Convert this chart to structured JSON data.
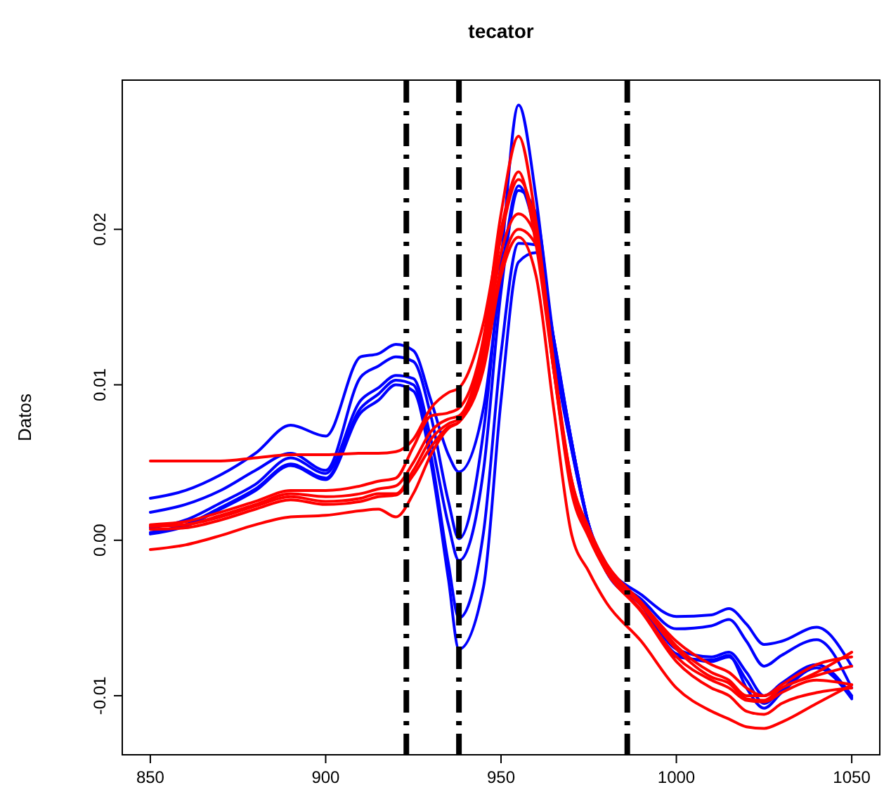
{
  "chart_data": {
    "type": "line",
    "title": "tecator",
    "ylabel": "Datos",
    "x": [
      850,
      860,
      870,
      880,
      890,
      900,
      910,
      915,
      920,
      925,
      930,
      935,
      938,
      945,
      950,
      955,
      960,
      965,
      970,
      975,
      980,
      990,
      1000,
      1010,
      1015,
      1020,
      1025,
      1030,
      1040,
      1050
    ],
    "series": [
      {
        "color": "#0000ff",
        "values": [
          0.0027,
          0.0032,
          0.0042,
          0.0056,
          0.0074,
          0.0067,
          0.0118,
          0.012,
          0.0126,
          0.0122,
          0.009,
          0.0055,
          0.0044,
          0.0085,
          0.017,
          0.0228,
          0.0195,
          0.012,
          0.006,
          0.001,
          -0.0015,
          -0.0035,
          -0.0049,
          -0.0048,
          -0.0044,
          -0.0054,
          -0.0067,
          -0.0065,
          -0.0056,
          -0.0081
        ]
      },
      {
        "color": "#0000ff",
        "values": [
          0.0018,
          0.0023,
          0.0032,
          0.0045,
          0.0056,
          0.0045,
          0.0105,
          0.0112,
          0.0118,
          0.0115,
          0.008,
          0.0025,
          0.0001,
          0.007,
          0.018,
          0.028,
          0.022,
          0.0125,
          0.006,
          0.001,
          -0.0018,
          -0.0038,
          -0.0057,
          -0.0055,
          -0.0051,
          -0.0065,
          -0.0081,
          -0.0074,
          -0.0064,
          -0.0095
        ]
      },
      {
        "color": "#0000ff",
        "values": [
          0.0008,
          0.0013,
          0.0024,
          0.0036,
          0.0053,
          0.0043,
          0.009,
          0.0098,
          0.0106,
          0.0104,
          0.0065,
          0.001,
          -0.0013,
          0.0045,
          0.016,
          0.0225,
          0.021,
          0.013,
          0.0065,
          0.001,
          -0.002,
          -0.0039,
          -0.007,
          -0.0075,
          -0.0072,
          -0.0085,
          -0.01,
          -0.0092,
          -0.008,
          -0.0101
        ]
      },
      {
        "color": "#0000ff",
        "values": [
          0.0005,
          0.001,
          0.0021,
          0.0033,
          0.0049,
          0.004,
          0.0085,
          0.0094,
          0.0103,
          0.01,
          0.0055,
          -0.0015,
          -0.005,
          0.0005,
          0.012,
          0.0191,
          0.019,
          0.013,
          0.0065,
          0.001,
          -0.002,
          -0.004,
          -0.0075,
          -0.0077,
          -0.0074,
          -0.0095,
          -0.0108,
          -0.0098,
          -0.0082,
          -0.0102
        ]
      },
      {
        "color": "#0000ff",
        "values": [
          0.0004,
          0.0009,
          0.002,
          0.0032,
          0.0048,
          0.0039,
          0.0082,
          0.009,
          0.01,
          0.0096,
          0.005,
          -0.0025,
          -0.007,
          -0.003,
          0.009,
          0.0179,
          0.0185,
          0.013,
          0.0065,
          0.001,
          -0.002,
          -0.0042,
          -0.0073,
          -0.0078,
          -0.0075,
          -0.009,
          -0.0105,
          -0.0096,
          -0.008,
          -0.01
        ]
      },
      {
        "color": "#ff0000",
        "values": [
          0.0051,
          0.0051,
          0.0051,
          0.0053,
          0.0055,
          0.0055,
          0.0056,
          0.0056,
          0.0057,
          0.0065,
          0.0085,
          0.0095,
          0.0098,
          0.014,
          0.02,
          0.0237,
          0.019,
          0.011,
          0.004,
          0.0005,
          -0.0015,
          -0.004,
          -0.0065,
          -0.008,
          -0.0085,
          -0.0095,
          -0.01,
          -0.0095,
          -0.0085,
          -0.0072
        ]
      },
      {
        "color": "#ff0000",
        "values": [
          0.001,
          0.0012,
          0.0018,
          0.0025,
          0.0032,
          0.0032,
          0.0035,
          0.0038,
          0.004,
          0.006,
          0.008,
          0.0082,
          0.0085,
          0.013,
          0.021,
          0.026,
          0.0205,
          0.0115,
          0.004,
          0.0008,
          -0.0015,
          -0.004,
          -0.0068,
          -0.0085,
          -0.009,
          -0.01,
          -0.01,
          -0.0093,
          -0.008,
          -0.0075
        ]
      },
      {
        "color": "#ff0000",
        "values": [
          0.0009,
          0.001,
          0.0016,
          0.0023,
          0.003,
          0.0028,
          0.003,
          0.0033,
          0.0035,
          0.005,
          0.007,
          0.0078,
          0.008,
          0.0125,
          0.0195,
          0.0232,
          0.02,
          0.0115,
          0.0035,
          0.0005,
          -0.0018,
          -0.0042,
          -0.007,
          -0.0088,
          -0.0092,
          -0.0102,
          -0.0103,
          -0.0095,
          -0.0087,
          -0.0081
        ]
      },
      {
        "color": "#ff0000",
        "values": [
          0.0009,
          0.001,
          0.0015,
          0.0022,
          0.0028,
          0.0025,
          0.0027,
          0.003,
          0.003,
          0.0045,
          0.0065,
          0.0075,
          0.0078,
          0.012,
          0.0185,
          0.021,
          0.0195,
          0.011,
          0.0035,
          0.0003,
          -0.002,
          -0.0045,
          -0.0075,
          -0.009,
          -0.0095,
          -0.0103,
          -0.0104,
          -0.0098,
          -0.009,
          -0.0093
        ]
      },
      {
        "color": "#ff0000",
        "values": [
          0.0007,
          0.0008,
          0.0013,
          0.002,
          0.0026,
          0.0023,
          0.0025,
          0.0028,
          0.0029,
          0.0042,
          0.006,
          0.0073,
          0.0076,
          0.0115,
          0.0175,
          0.02,
          0.019,
          0.011,
          0.0032,
          0.0002,
          -0.002,
          -0.0046,
          -0.0078,
          -0.0095,
          -0.01,
          -0.011,
          -0.0112,
          -0.0105,
          -0.0098,
          -0.0095
        ]
      },
      {
        "color": "#ff0000",
        "values": [
          -0.0006,
          -0.0003,
          0.0003,
          0.001,
          0.0015,
          0.0016,
          0.0019,
          0.002,
          0.0015,
          0.003,
          0.0055,
          0.0072,
          0.0076,
          0.011,
          0.017,
          0.0195,
          0.017,
          0.0085,
          0.0005,
          -0.002,
          -0.004,
          -0.0065,
          -0.0095,
          -0.011,
          -0.0115,
          -0.012,
          -0.0121,
          -0.0117,
          -0.0105,
          -0.0093
        ]
      }
    ],
    "xlim": [
      842,
      1058
    ],
    "ylim": [
      -0.0138,
      0.0296
    ],
    "xticks": [
      850,
      900,
      950,
      1000,
      1050
    ],
    "yticks": [
      {
        "value": -0.01,
        "label": "-0.01"
      },
      {
        "value": 0,
        "label": "0.00"
      },
      {
        "value": 0.01,
        "label": "0.01"
      },
      {
        "value": 0.02,
        "label": "0.02"
      }
    ],
    "ref_lines": [
      {
        "axis": "x",
        "value": 923,
        "color": "#000000",
        "line_style": "dashed"
      },
      {
        "axis": "x",
        "value": 938,
        "color": "#000000",
        "line_style": "dashed"
      },
      {
        "axis": "x",
        "value": 986,
        "color": "#000000",
        "line_style": "dashed"
      }
    ],
    "grid": false,
    "marker": "none",
    "line_style": "solid"
  }
}
